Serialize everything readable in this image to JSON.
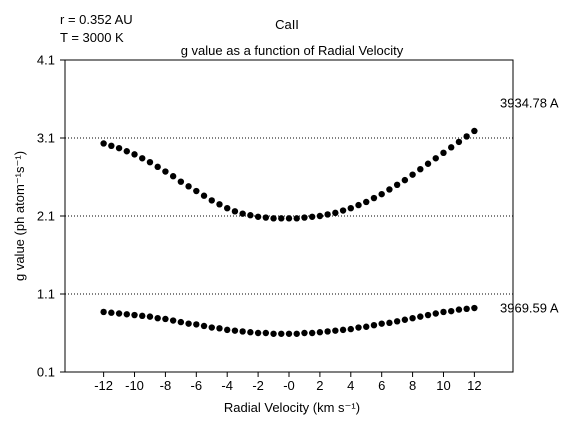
{
  "chart_data": {
    "type": "scatter",
    "title": "CaII",
    "subtitle": "g value as a function of Radial Velocity",
    "annotations": [
      "r = 0.352 AU",
      "T = 3000 K"
    ],
    "xlabel": "Radial Velocity (km s⁻¹)",
    "ylabel": "g value (ph atom⁻¹s⁻¹)",
    "xlim": [
      -14.5,
      14.5
    ],
    "ylim": [
      0.1,
      4.1
    ],
    "x_ticks": [
      -12,
      -10,
      -8,
      -6,
      -4,
      -2,
      0,
      2,
      4,
      6,
      8,
      10,
      12
    ],
    "x_tick_labels": [
      "-12",
      "-10",
      "-8",
      "-6",
      "-4",
      "-2",
      "-0",
      "2",
      "4",
      "6",
      "8",
      "10",
      "12"
    ],
    "y_ticks": [
      0.1,
      1.1,
      2.1,
      3.1,
      4.1
    ],
    "y_tick_labels": [
      "0.1",
      "1.1",
      "2.1",
      "3.1",
      "4.1"
    ],
    "grid": "horizontal dotted lines at y ticks",
    "x": [
      -12,
      -11.5,
      -11,
      -10.5,
      -10,
      -9.5,
      -9,
      -8.5,
      -8,
      -7.5,
      -7,
      -6.5,
      -6,
      -5.5,
      -5,
      -4.5,
      -4,
      -3.5,
      -3,
      -2.5,
      -2,
      -1.5,
      -1,
      -0.5,
      0,
      0.5,
      1,
      1.5,
      2,
      2.5,
      3,
      3.5,
      4,
      4.5,
      5,
      5.5,
      6,
      6.5,
      7,
      7.5,
      8,
      8.5,
      9,
      9.5,
      10,
      10.5,
      11,
      11.5,
      12
    ],
    "series": [
      {
        "name": "3934.78 A",
        "values": [
          3.03,
          3.0,
          2.97,
          2.93,
          2.89,
          2.84,
          2.79,
          2.73,
          2.67,
          2.61,
          2.54,
          2.48,
          2.42,
          2.36,
          2.3,
          2.25,
          2.2,
          2.16,
          2.13,
          2.11,
          2.09,
          2.08,
          2.07,
          2.07,
          2.07,
          2.07,
          2.08,
          2.09,
          2.1,
          2.12,
          2.14,
          2.17,
          2.2,
          2.24,
          2.28,
          2.33,
          2.38,
          2.44,
          2.5,
          2.56,
          2.63,
          2.7,
          2.77,
          2.84,
          2.91,
          2.98,
          3.05,
          3.12,
          3.19
        ]
      },
      {
        "name": "3969.59 A",
        "values": [
          0.87,
          0.86,
          0.85,
          0.84,
          0.83,
          0.82,
          0.81,
          0.79,
          0.78,
          0.76,
          0.74,
          0.72,
          0.71,
          0.69,
          0.67,
          0.66,
          0.64,
          0.63,
          0.62,
          0.61,
          0.6,
          0.6,
          0.59,
          0.59,
          0.59,
          0.59,
          0.6,
          0.6,
          0.61,
          0.62,
          0.63,
          0.64,
          0.65,
          0.67,
          0.68,
          0.7,
          0.72,
          0.73,
          0.75,
          0.77,
          0.79,
          0.81,
          0.83,
          0.85,
          0.87,
          0.88,
          0.9,
          0.91,
          0.92
        ]
      }
    ]
  }
}
